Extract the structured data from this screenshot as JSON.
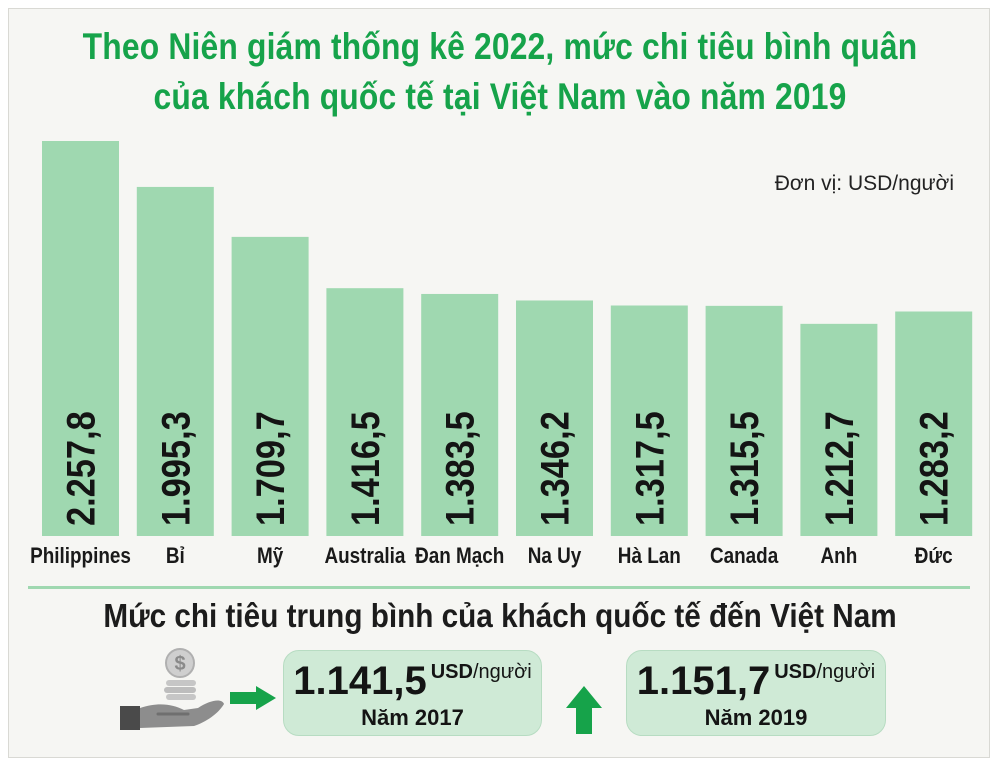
{
  "title_line1": "Theo Niên giám thống kê 2022, mức chi tiêu bình quân",
  "title_line2": "của khách quốc tế tại Việt Nam vào năm 2019",
  "unit_label": "Đơn vị: USD/người",
  "colors": {
    "title": "#16a34a",
    "bar": "#9fd8b0",
    "box": "#cfead6",
    "arrow": "#16a34a"
  },
  "chart_data": {
    "type": "bar",
    "categories": [
      "Philippines",
      "Bỉ",
      "Mỹ",
      "Australia",
      "Đan Mạch",
      "Na Uy",
      "Hà Lan",
      "Canada",
      "Anh",
      "Đức"
    ],
    "values": [
      2257.8,
      1995.3,
      1709.7,
      1416.5,
      1383.5,
      1346.2,
      1317.5,
      1315.5,
      1212.7,
      1283.2
    ],
    "value_labels": [
      "2.257,8",
      "1.995,3",
      "1.709,7",
      "1.416,5",
      "1.383,5",
      "1.346,2",
      "1.317,5",
      "1.315,5",
      "1.212,7",
      "1.283,2"
    ],
    "ylim": [
      0,
      2257.8
    ],
    "grid": false
  },
  "summary": {
    "title": "Mức chi tiêu trung bình của khách quốc tế đến Việt Nam",
    "item_2017": {
      "value": "1.141,5",
      "unit_main": "USD",
      "unit_rest": "/người",
      "year": "Năm 2017"
    },
    "item_2019": {
      "value": "1.151,7",
      "unit_main": "USD",
      "unit_rest": "/người",
      "year": "Năm 2019"
    }
  },
  "icons": [
    "money-hand-icon",
    "arrow-right-icon",
    "arrow-up-icon"
  ]
}
